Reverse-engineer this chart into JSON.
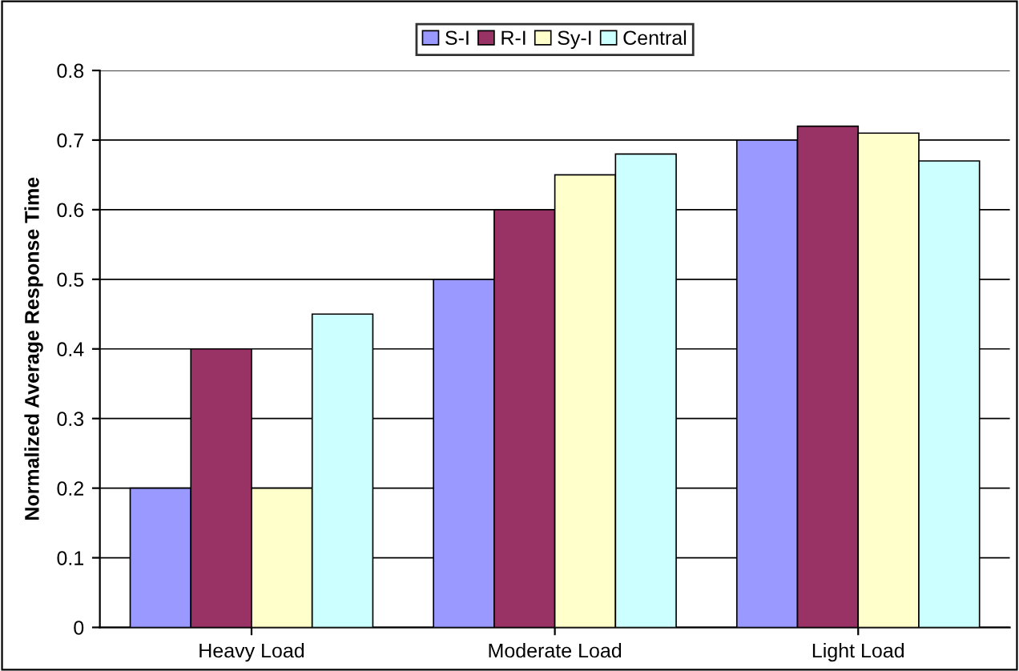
{
  "chart_data": {
    "type": "bar",
    "ylabel": "Normalized Average Response Time",
    "categories": [
      "Heavy Load",
      "Moderate Load",
      "Light Load"
    ],
    "series": [
      {
        "name": "S-I",
        "color": "#9999ff",
        "values": [
          0.2,
          0.5,
          0.7
        ]
      },
      {
        "name": "R-I",
        "color": "#993366",
        "values": [
          0.4,
          0.6,
          0.72
        ]
      },
      {
        "name": "Sy-I",
        "color": "#ffffcc",
        "values": [
          0.2,
          0.65,
          0.71
        ]
      },
      {
        "name": "Central",
        "color": "#ccffff",
        "values": [
          0.45,
          0.68,
          0.67
        ]
      }
    ],
    "ylim": [
      0,
      0.8
    ],
    "yticks": [
      0,
      0.1,
      0.2,
      0.3,
      0.4,
      0.5,
      0.6,
      0.7,
      0.8
    ],
    "grid": "y",
    "legend": "top"
  }
}
